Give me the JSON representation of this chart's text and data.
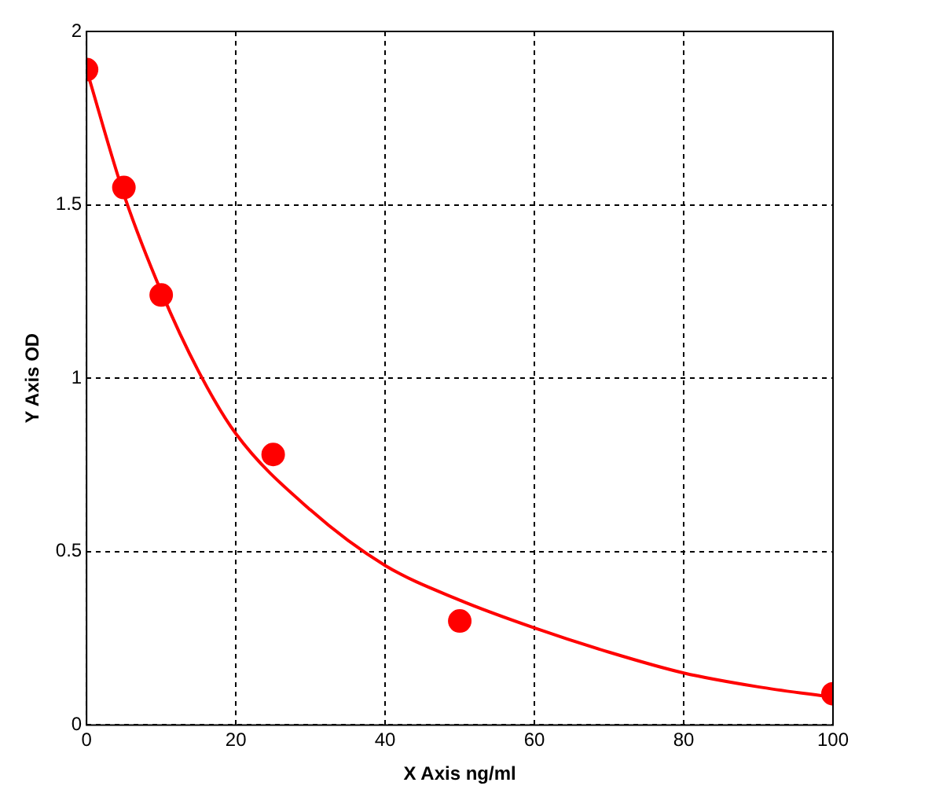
{
  "chart_data": {
    "type": "scatter",
    "xlabel": "X Axis ng/ml",
    "ylabel": "Y Axis OD",
    "xlim": [
      0,
      100
    ],
    "xticks": [
      0,
      20,
      40,
      60,
      80,
      100
    ],
    "ylim": [
      0,
      2
    ],
    "yticks": [
      0,
      0.5,
      1,
      1.5,
      2
    ],
    "grid": true,
    "marker": "circle",
    "series": [
      {
        "type": "scatter",
        "color": "#ff0000",
        "x": [
          0,
          5,
          10,
          25,
          50,
          100
        ],
        "values": [
          1.89,
          1.55,
          1.24,
          0.78,
          0.3,
          0.09
        ]
      },
      {
        "type": "line",
        "color": "#ff0000",
        "marker": "none",
        "x": [
          0,
          5,
          10,
          15,
          20,
          30,
          40,
          50,
          60,
          70,
          80,
          90,
          100
        ],
        "values": [
          1.89,
          1.53,
          1.25,
          1.02,
          0.84,
          0.62,
          0.46,
          0.36,
          0.28,
          0.21,
          0.15,
          0.11,
          0.08
        ]
      }
    ]
  }
}
